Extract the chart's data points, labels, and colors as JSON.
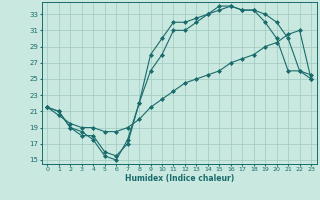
{
  "xlabel": "Humidex (Indice chaleur)",
  "xlim": [
    -0.5,
    23.5
  ],
  "ylim": [
    14.5,
    34.5
  ],
  "xticks": [
    0,
    1,
    2,
    3,
    4,
    5,
    6,
    7,
    8,
    9,
    10,
    11,
    12,
    13,
    14,
    15,
    16,
    17,
    18,
    19,
    20,
    21,
    22,
    23
  ],
  "yticks": [
    15,
    17,
    19,
    21,
    23,
    25,
    27,
    29,
    31,
    33
  ],
  "background_color": "#c8e8e0",
  "grid_color": "#a0c8c0",
  "line_color": "#1a6b6b",
  "line1_x": [
    0,
    1,
    2,
    3,
    4,
    5,
    6,
    7,
    8,
    9,
    10,
    11,
    12,
    13,
    14,
    15,
    16,
    17,
    18,
    19,
    20,
    21,
    22,
    23
  ],
  "line1_y": [
    21.5,
    21,
    19,
    18.5,
    17.5,
    15.5,
    15,
    17.5,
    22,
    28,
    30,
    32,
    32,
    32.5,
    33,
    34,
    34,
    33.5,
    33.5,
    32,
    30,
    26,
    26,
    25.5
  ],
  "line2_x": [
    0,
    1,
    2,
    3,
    4,
    5,
    6,
    7,
    8,
    9,
    10,
    11,
    12,
    13,
    14,
    15,
    16,
    17,
    18,
    19,
    20,
    21,
    22,
    23
  ],
  "line2_y": [
    21.5,
    21,
    19,
    18,
    18,
    16,
    15.5,
    17,
    22,
    26,
    28,
    31,
    31,
    32,
    33,
    33.5,
    34,
    33.5,
    33.5,
    33,
    32,
    30,
    26,
    25
  ],
  "line3_x": [
    0,
    1,
    2,
    3,
    4,
    5,
    6,
    7,
    8,
    9,
    10,
    11,
    12,
    13,
    14,
    15,
    16,
    17,
    18,
    19,
    20,
    21,
    22,
    23
  ],
  "line3_y": [
    21.5,
    20.5,
    19.5,
    19,
    19,
    18.5,
    18.5,
    19,
    20,
    21.5,
    22.5,
    23.5,
    24.5,
    25,
    25.5,
    26,
    27,
    27.5,
    28,
    29,
    29.5,
    30.5,
    31,
    25
  ]
}
